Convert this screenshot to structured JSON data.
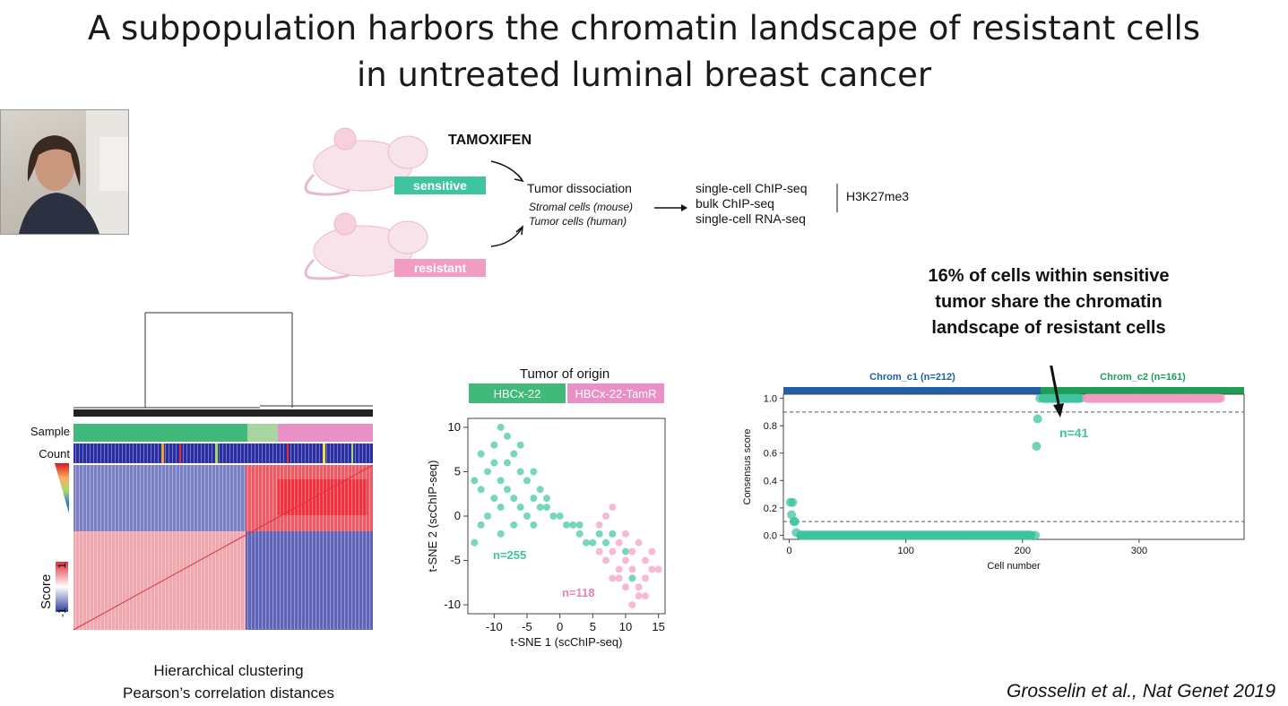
{
  "slide": {
    "title_line1": "A subpopulation harbors the chromatin landscape of resistant cells",
    "title_line2": "in untreated luminal breast cancer",
    "reference": "Grosselin et al., Nat Genet 2019"
  },
  "schema": {
    "drug": "TAMOXIFEN",
    "label_sensitive": "sensitive",
    "label_resistant": "resistant",
    "step1": "Tumor dissociation",
    "step1_sub1": "Stromal cells (mouse)",
    "step1_sub2": "Tumor cells (human)",
    "methods": [
      "single-cell ChIP-seq",
      "bulk ChIP-seq",
      "single-cell RNA-seq"
    ],
    "mark": "H3K27me3",
    "colors": {
      "sensitive": "#3ec49f",
      "resistant": "#f29cc4"
    }
  },
  "heatmap": {
    "row_label_sample": "Sample",
    "row_label_count": "Count",
    "score_label": "Score",
    "score_max": "1",
    "score_min": "-1",
    "caption_line1": "Hierarchical clustering",
    "caption_line2": "Pearson’s correlation distances"
  },
  "tsne": {
    "legend_title": "Tumor of origin",
    "legend_items": [
      "HBCx-22",
      "HBCx-22-TamR"
    ],
    "xlabel": "t-SNE 1 (scChIP-seq)",
    "ylabel": "t-SNE 2 (scChIP-seq)",
    "n_sensitive": "n=255",
    "n_resistant": "n=118",
    "xticks": [
      "-10",
      "-5",
      "0",
      "5",
      "10",
      "15"
    ],
    "yticks": [
      "10",
      "5",
      "0",
      "-5",
      "-10"
    ]
  },
  "consensus": {
    "callout_line1": "16% of cells within sensitive",
    "callout_line2": "tumor share the chromatin",
    "callout_line3": "landscape of resistant cells",
    "cluster1": "Chrom_c1 (n=212)",
    "cluster2": "Chrom_c2 (n=161)",
    "n_label": "n=41",
    "xlabel": "Cell number",
    "ylabel": "Consensus score",
    "xticks": [
      "0",
      "100",
      "200",
      "300"
    ],
    "yticks": [
      "1.0",
      "0.8",
      "0.6",
      "0.4",
      "0.2",
      "0.0"
    ]
  },
  "chart_data": [
    {
      "type": "scatter",
      "title": "",
      "xlabel": "t-SNE 1 (scChIP-seq)",
      "ylabel": "t-SNE 2 (scChIP-seq)",
      "xlim": [
        -14,
        16
      ],
      "ylim": [
        -11,
        11
      ],
      "series": [
        {
          "name": "HBCx-22",
          "color": "#3ec49f",
          "points": [
            [
              -10,
              8
            ],
            [
              -9,
              10
            ],
            [
              -8,
              6
            ],
            [
              -7,
              7
            ],
            [
              -11,
              5
            ],
            [
              -9,
              4
            ],
            [
              -6,
              5
            ],
            [
              -12,
              3
            ],
            [
              -8,
              3
            ],
            [
              -5,
              4
            ],
            [
              -7,
              2
            ],
            [
              -10,
              2
            ],
            [
              -4,
              2
            ],
            [
              -6,
              1
            ],
            [
              -3,
              1
            ],
            [
              -9,
              1
            ],
            [
              -5,
              0
            ],
            [
              -2,
              1
            ],
            [
              -11,
              0
            ],
            [
              -7,
              -1
            ],
            [
              -4,
              -1
            ],
            [
              -1,
              0
            ],
            [
              0,
              0
            ],
            [
              1,
              -1
            ],
            [
              2,
              -1
            ],
            [
              3,
              -2
            ],
            [
              4,
              -3
            ],
            [
              5,
              -3
            ],
            [
              6,
              -2
            ],
            [
              3,
              -1
            ],
            [
              -12,
              7
            ],
            [
              -6,
              8
            ],
            [
              -3,
              3
            ],
            [
              -13,
              4
            ],
            [
              -8,
              9
            ],
            [
              -10,
              6
            ],
            [
              -4,
              5
            ],
            [
              -2,
              2
            ],
            [
              -9,
              -2
            ],
            [
              -12,
              -1
            ],
            [
              -13,
              -3
            ],
            [
              7,
              -3
            ],
            [
              8,
              -2
            ],
            [
              10,
              -4
            ],
            [
              11,
              -7
            ]
          ]
        },
        {
          "name": "HBCx-22-TamR",
          "color": "#f29cc4",
          "points": [
            [
              6,
              -1
            ],
            [
              7,
              0
            ],
            [
              8,
              1
            ],
            [
              9,
              -3
            ],
            [
              10,
              -5
            ],
            [
              11,
              -6
            ],
            [
              12,
              -8
            ],
            [
              13,
              -7
            ],
            [
              8,
              -4
            ],
            [
              9,
              -6
            ],
            [
              11,
              -4
            ],
            [
              12,
              -3
            ],
            [
              13,
              -5
            ],
            [
              14,
              -6
            ],
            [
              10,
              -8
            ],
            [
              9,
              -7
            ],
            [
              7,
              -5
            ],
            [
              6,
              -4
            ],
            [
              12,
              -9
            ],
            [
              11,
              -10
            ],
            [
              14,
              -4
            ],
            [
              10,
              -2
            ],
            [
              8,
              -7
            ],
            [
              13,
              -9
            ],
            [
              15,
              -6
            ]
          ]
        }
      ]
    },
    {
      "type": "scatter",
      "title": "",
      "xlabel": "Cell number",
      "ylabel": "Consensus score",
      "xlim": [
        -5,
        390
      ],
      "ylim": [
        -0.03,
        1.03
      ],
      "thresholds": [
        0.9,
        0.1
      ],
      "clusters": [
        {
          "name": "Chrom_c1 (n=212)",
          "range": [
            0,
            212
          ],
          "color": "#1f5fa8"
        },
        {
          "name": "Chrom_c2 (n=161)",
          "range": [
            212,
            373
          ],
          "color": "#1e9e55"
        }
      ],
      "series": [
        {
          "name": "Chrom_c1",
          "color": "#3ec49f",
          "points": [
            [
              1,
              0.24
            ],
            [
              3,
              0.24
            ],
            [
              2,
              0.15
            ],
            [
              4,
              0.1
            ],
            [
              5,
              0.1
            ],
            [
              6,
              0.02
            ],
            [
              10,
              0.0
            ],
            [
              50,
              0.0
            ],
            [
              100,
              0.0
            ],
            [
              150,
              0.0
            ],
            [
              200,
              0.0
            ],
            [
              211,
              0.0
            ]
          ]
        },
        {
          "name": "Chrom_c2 sensitive",
          "color": "#3ec49f",
          "points": [
            [
              212,
              0.65
            ],
            [
              213,
              0.85
            ],
            [
              215,
              1.0
            ],
            [
              230,
              1.0
            ],
            [
              250,
              1.0
            ]
          ]
        },
        {
          "name": "Chrom_c2 resistant",
          "color": "#f29cc4",
          "points": [
            [
              255,
              1.0
            ],
            [
              300,
              1.0
            ],
            [
              340,
              1.0
            ],
            [
              370,
              1.0
            ]
          ]
        }
      ]
    }
  ]
}
